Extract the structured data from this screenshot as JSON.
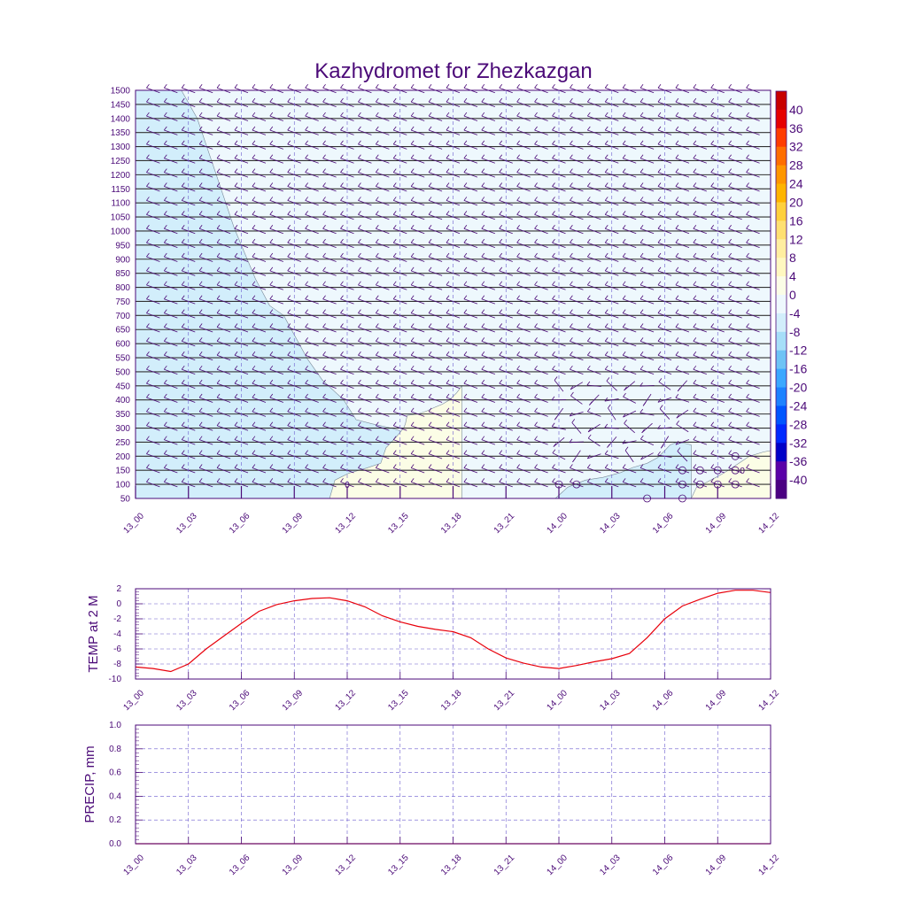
{
  "title": "Kazhydromet for Zhezkazgan",
  "x_ticks": [
    "13_00",
    "13_03",
    "13_06",
    "13_09",
    "13_12",
    "13_15",
    "13_18",
    "13_21",
    "14_00",
    "14_03",
    "14_06",
    "14_09",
    "14_12"
  ],
  "colorbar": {
    "labels": [
      "40",
      "36",
      "32",
      "28",
      "24",
      "20",
      "16",
      "12",
      "8",
      "4",
      "0",
      "-4",
      "-8",
      "-12",
      "-16",
      "-20",
      "-24",
      "-28",
      "-32",
      "-36",
      "-40"
    ],
    "colors": [
      "#4b0082",
      "#5a00a8",
      "#0000c8",
      "#0028ff",
      "#0055ff",
      "#1e82ff",
      "#3ca8ff",
      "#6ec3f5",
      "#a6def8",
      "#d2eefb",
      "#eef8fd",
      "#fbfde6",
      "#fff8c0",
      "#ffeea0",
      "#ffe070",
      "#ffd03c",
      "#ffb400",
      "#ff9600",
      "#ff6e00",
      "#ff3c00",
      "#e60000",
      "#c80000"
    ]
  },
  "chart_data": [
    {
      "type": "heatmap",
      "title": "Kazhydromet for Zhezkazgan",
      "y_ticks": [
        "50",
        "100",
        "150",
        "200",
        "250",
        "300",
        "350",
        "400",
        "450",
        "500",
        "550",
        "600",
        "650",
        "700",
        "750",
        "800",
        "850",
        "900",
        "950",
        "1000",
        "1050",
        "1100",
        "1150",
        "1200",
        "1250",
        "1300",
        "1350",
        "1400",
        "1450",
        "1500"
      ],
      "ylim": [
        50,
        1500
      ],
      "x_ticks": [
        "13_00",
        "13_03",
        "13_06",
        "13_09",
        "13_12",
        "13_15",
        "13_18",
        "13_21",
        "14_00",
        "14_03",
        "14_06",
        "14_09",
        "14_12"
      ],
      "contour_labels": [
        "0",
        "0"
      ],
      "cold_boundary": [
        [
          0,
          1500
        ],
        [
          2.6,
          1500
        ],
        [
          3.5,
          1400
        ],
        [
          4.5,
          1215
        ],
        [
          5.6,
          1010
        ],
        [
          6.8,
          830
        ],
        [
          7.6,
          735
        ],
        [
          8.4,
          700
        ],
        [
          9.1,
          620
        ],
        [
          9.75,
          545
        ],
        [
          10.6,
          470
        ],
        [
          11.8,
          400
        ],
        [
          12.5,
          330
        ],
        [
          13.4,
          315
        ],
        [
          14.5,
          300
        ],
        [
          15,
          290
        ],
        [
          16,
          210
        ],
        [
          16.8,
          150
        ],
        [
          17.6,
          100
        ],
        [
          17.9,
          50
        ],
        [
          0,
          50
        ]
      ],
      "warm_pocket_left": [
        [
          11,
          50
        ],
        [
          11.3,
          115
        ],
        [
          12.1,
          140
        ],
        [
          13.1,
          158
        ],
        [
          13.9,
          175
        ],
        [
          14.2,
          230
        ],
        [
          14.8,
          270
        ],
        [
          15.2,
          300
        ],
        [
          15.3,
          315
        ],
        [
          15.4,
          345
        ],
        [
          16,
          350
        ],
        [
          16.5,
          360
        ],
        [
          16.9,
          372
        ],
        [
          17.4,
          385
        ],
        [
          17.8,
          400
        ],
        [
          18.2,
          425
        ],
        [
          18.5,
          450
        ],
        [
          18.5,
          50
        ]
      ],
      "cold_pocket_right": [
        [
          23.8,
          50
        ],
        [
          24.5,
          90
        ],
        [
          25.5,
          115
        ],
        [
          26.5,
          125
        ],
        [
          27.5,
          142
        ],
        [
          28.2,
          160
        ],
        [
          29,
          175
        ],
        [
          29.6,
          195
        ],
        [
          30,
          220
        ],
        [
          30.3,
          240
        ],
        [
          30.7,
          250
        ],
        [
          31.2,
          245
        ],
        [
          31.5,
          240
        ],
        [
          31.5,
          50
        ]
      ],
      "warm_pocket_right": [
        [
          31.5,
          50
        ],
        [
          31.8,
          90
        ],
        [
          32.3,
          105
        ],
        [
          33,
          128
        ],
        [
          33.6,
          150
        ],
        [
          34.2,
          175
        ],
        [
          34.8,
          200
        ],
        [
          35.6,
          215
        ],
        [
          36,
          220
        ],
        [
          36,
          50
        ]
      ],
      "wind_anomaly_rows": [
        "200",
        "250",
        "300",
        "350",
        "400",
        "450"
      ]
    },
    {
      "type": "line",
      "ylabel": "TEMP at 2 M",
      "ylim": [
        -10,
        2
      ],
      "y_ticks": [
        "2",
        "0",
        "-2",
        "-4",
        "-6",
        "-8",
        "-10"
      ],
      "x_ticks": [
        "13_00",
        "13_03",
        "13_06",
        "13_09",
        "13_12",
        "13_15",
        "13_18",
        "13_21",
        "14_00",
        "14_03",
        "14_06",
        "14_09",
        "14_12"
      ],
      "x": [
        0,
        1,
        2,
        3,
        4,
        5,
        6,
        7,
        8,
        9,
        10,
        11,
        12,
        13,
        14,
        15,
        16,
        17,
        18,
        19,
        20,
        21,
        22,
        23,
        24,
        25,
        26,
        27,
        28,
        29,
        30,
        31,
        32,
        33,
        34,
        35,
        36
      ],
      "values": [
        -8.4,
        -8.6,
        -9.0,
        -8.0,
        -6.0,
        -4.3,
        -2.6,
        -1.0,
        -0.1,
        0.4,
        0.7,
        0.8,
        0.4,
        -0.4,
        -1.6,
        -2.4,
        -3.0,
        -3.4,
        -3.7,
        -4.5,
        -6.0,
        -7.2,
        -7.9,
        -8.4,
        -8.6,
        -8.2,
        -7.7,
        -7.3,
        -6.6,
        -4.5,
        -2.0,
        -0.3,
        0.6,
        1.4,
        1.8,
        1.8,
        1.5
      ],
      "color": "#e8000b"
    },
    {
      "type": "line",
      "ylabel": "PRECIP, mm",
      "ylim": [
        0,
        1
      ],
      "y_ticks": [
        "1.0",
        "0.8",
        "0.6",
        "0.4",
        "0.2",
        "0.0"
      ],
      "x_ticks": [
        "13_00",
        "13_03",
        "13_06",
        "13_09",
        "13_12",
        "13_15",
        "13_18",
        "13_21",
        "14_00",
        "14_03",
        "14_06",
        "14_09",
        "14_12"
      ],
      "x": [
        0,
        36
      ],
      "values": [
        0,
        0
      ],
      "color": "#e8000b"
    }
  ]
}
